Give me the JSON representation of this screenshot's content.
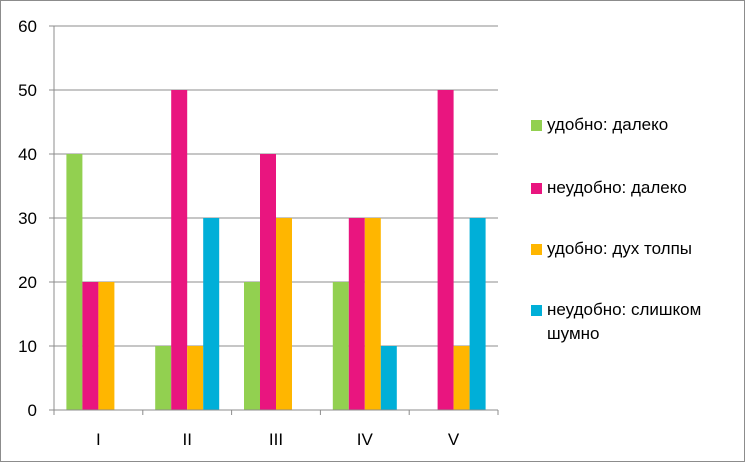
{
  "chart_data": {
    "type": "bar",
    "categories": [
      "I",
      "II",
      "III",
      "IV",
      "V"
    ],
    "series": [
      {
        "name": "удобно: далеко",
        "color": "#92d050",
        "values": [
          40,
          10,
          20,
          20,
          0
        ]
      },
      {
        "name": "неудобно: далеко",
        "color": "#e9157f",
        "values": [
          20,
          50,
          40,
          30,
          50
        ]
      },
      {
        "name": "удобно: дух толпы",
        "color": "#ffb600",
        "values": [
          20,
          10,
          30,
          30,
          10
        ]
      },
      {
        "name": "неудобно: слишком шумно",
        "color": "#00afd8",
        "values": [
          0,
          30,
          0,
          10,
          30
        ]
      }
    ],
    "ylim": [
      0,
      60
    ],
    "yticks": [
      0,
      10,
      20,
      30,
      40,
      50,
      60
    ],
    "grid": true,
    "legend_position": "right"
  }
}
